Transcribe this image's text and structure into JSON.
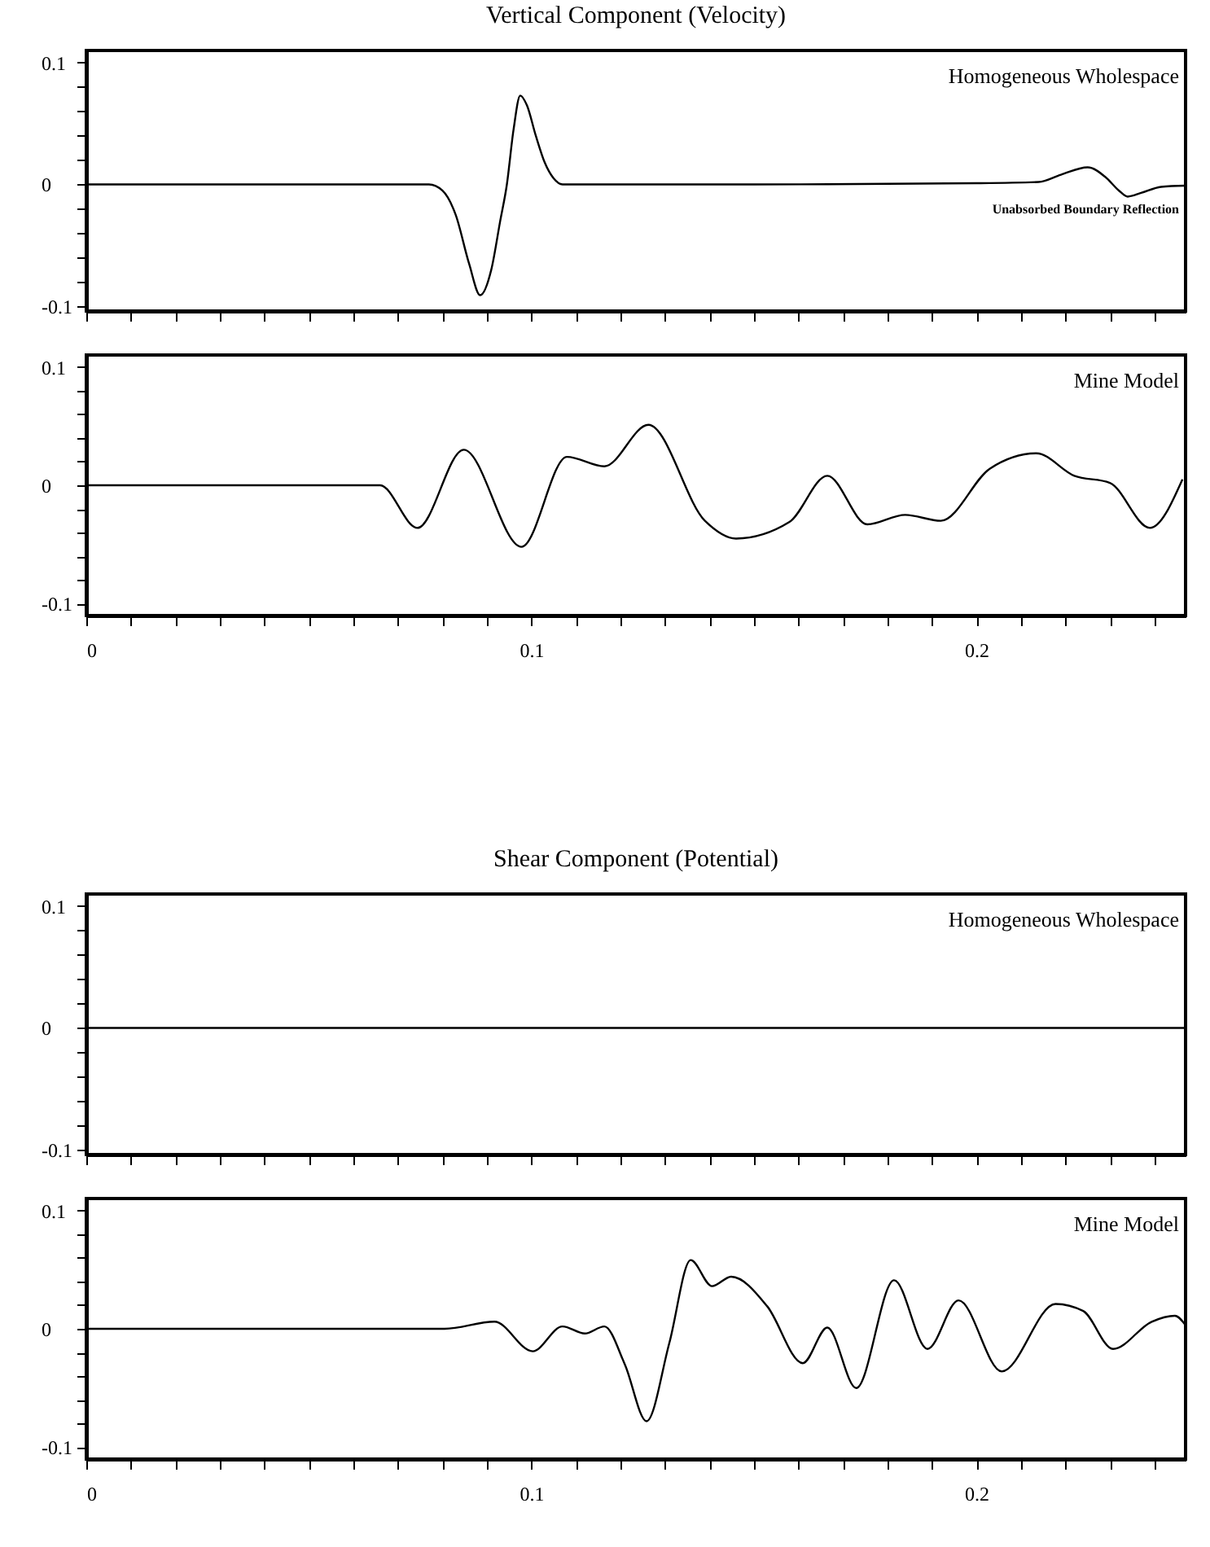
{
  "chart_data": [
    {
      "type": "line",
      "title": "Vertical Component (Velocity)",
      "annotations": [
        "Homogeneous Wholespace",
        "Unabsorbed Boundary Reflection"
      ],
      "x": [
        0,
        0.07,
        0.077,
        0.08,
        0.083,
        0.086,
        0.0885,
        0.091,
        0.093,
        0.0945,
        0.096,
        0.0975,
        0.099,
        0.101,
        0.103,
        0.105,
        0.107,
        0.15,
        0.2,
        0.214,
        0.219,
        0.225,
        0.229,
        0.232,
        0.234,
        0.237,
        0.2415,
        0.247
      ],
      "series": [
        {
          "color": "#000000",
          "values": [
            0,
            0,
            0,
            -0.005,
            -0.025,
            -0.065,
            -0.091,
            -0.07,
            -0.03,
            0,
            0.045,
            0.073,
            0.065,
            0.04,
            0.018,
            0.005,
            0,
            0,
            0.001,
            0.002,
            0.008,
            0.014,
            0.006,
            -0.005,
            -0.01,
            -0.007,
            -0.002,
            -0.001
          ]
        }
      ],
      "xlim": [
        0,
        0.247
      ],
      "ylim": [
        -0.104,
        0.11
      ],
      "tick_labels": "y",
      "xticks": [
        0,
        {
          "value": 0.01,
          "label": null
        },
        {
          "value": 0.02,
          "label": null
        },
        {
          "value": 0.03,
          "label": null
        },
        {
          "value": 0.04,
          "label": null
        },
        {
          "value": 0.05,
          "label": null
        },
        {
          "value": 0.06,
          "label": null
        },
        {
          "value": 0.07,
          "label": null
        },
        {
          "value": 0.08,
          "label": null
        },
        {
          "value": 0.09,
          "label": null
        },
        0.1,
        {
          "value": 0.11,
          "label": null
        },
        {
          "value": 0.12,
          "label": null
        },
        {
          "value": 0.13,
          "label": null
        },
        {
          "value": 0.14,
          "label": null
        },
        {
          "value": 0.15,
          "label": null
        },
        {
          "value": 0.16,
          "label": null
        },
        {
          "value": 0.17,
          "label": null
        },
        {
          "value": 0.18,
          "label": null
        },
        {
          "value": 0.19,
          "label": null
        },
        0.2,
        {
          "value": 0.21,
          "label": null
        },
        {
          "value": 0.22,
          "label": null
        },
        {
          "value": 0.23,
          "label": null
        },
        {
          "value": 0.24,
          "label": null
        }
      ],
      "yticks": [
        -0.1,
        {
          "value": -0.08,
          "label": null
        },
        {
          "value": -0.06,
          "label": null
        },
        {
          "value": -0.04,
          "label": null
        },
        {
          "value": -0.02,
          "label": null
        },
        0,
        {
          "value": 0.02,
          "label": null
        },
        {
          "value": 0.04,
          "label": null
        },
        {
          "value": 0.06,
          "label": null
        },
        {
          "value": 0.08,
          "label": null
        },
        0.1
      ]
    },
    {
      "type": "line",
      "annotations": [
        "Mine Model"
      ],
      "x": [
        0,
        0.066,
        0.0744,
        0.0848,
        0.0978,
        0.108,
        0.1164,
        0.1263,
        0.139,
        0.146,
        0.158,
        0.1665,
        0.1755,
        0.184,
        0.192,
        0.203,
        0.2135,
        0.222,
        0.23,
        0.239,
        0.2463
      ],
      "series": [
        {
          "color": "#000000",
          "values": [
            0,
            0,
            -0.036,
            0.03,
            -0.052,
            0.024,
            0.016,
            0.051,
            -0.03,
            -0.045,
            -0.031,
            0.008,
            -0.033,
            -0.025,
            -0.03,
            0.014,
            0.027,
            0.008,
            0.002,
            -0.036,
            0.005
          ]
        }
      ],
      "xlim": [
        0,
        0.247
      ],
      "ylim": [
        -0.11,
        0.11
      ],
      "xticks": [
        0,
        {
          "value": 0.01,
          "label": null
        },
        {
          "value": 0.02,
          "label": null
        },
        {
          "value": 0.03,
          "label": null
        },
        {
          "value": 0.04,
          "label": null
        },
        {
          "value": 0.05,
          "label": null
        },
        {
          "value": 0.06,
          "label": null
        },
        {
          "value": 0.07,
          "label": null
        },
        {
          "value": 0.08,
          "label": null
        },
        {
          "value": 0.09,
          "label": null
        },
        0.1,
        {
          "value": 0.11,
          "label": null
        },
        {
          "value": 0.12,
          "label": null
        },
        {
          "value": 0.13,
          "label": null
        },
        {
          "value": 0.14,
          "label": null
        },
        {
          "value": 0.15,
          "label": null
        },
        {
          "value": 0.16,
          "label": null
        },
        {
          "value": 0.17,
          "label": null
        },
        {
          "value": 0.18,
          "label": null
        },
        {
          "value": 0.19,
          "label": null
        },
        0.2,
        {
          "value": 0.21,
          "label": null
        },
        {
          "value": 0.22,
          "label": null
        },
        {
          "value": 0.23,
          "label": null
        },
        {
          "value": 0.24,
          "label": null
        }
      ],
      "yticks": [
        -0.1,
        {
          "value": -0.08,
          "label": null
        },
        {
          "value": -0.06,
          "label": null
        },
        {
          "value": -0.04,
          "label": null
        },
        {
          "value": -0.02,
          "label": null
        },
        0,
        {
          "value": 0.02,
          "label": null
        },
        {
          "value": 0.04,
          "label": null
        },
        {
          "value": 0.06,
          "label": null
        },
        {
          "value": 0.08,
          "label": null
        },
        0.1
      ]
    },
    {
      "type": "line",
      "title": "Shear Component (Potential)",
      "annotations": [
        "Homogeneous Wholespace"
      ],
      "x": [
        0,
        0.05,
        0.1,
        0.15,
        0.2,
        0.247
      ],
      "series": [
        {
          "color": "#000000",
          "values": [
            0,
            0,
            0,
            0,
            0,
            0
          ]
        }
      ],
      "xlim": [
        0,
        0.247
      ],
      "ylim": [
        -0.104,
        0.11
      ],
      "tick_labels": "y",
      "xticks": [
        0,
        {
          "value": 0.01,
          "label": null
        },
        {
          "value": 0.02,
          "label": null
        },
        {
          "value": 0.03,
          "label": null
        },
        {
          "value": 0.04,
          "label": null
        },
        {
          "value": 0.05,
          "label": null
        },
        {
          "value": 0.06,
          "label": null
        },
        {
          "value": 0.07,
          "label": null
        },
        {
          "value": 0.08,
          "label": null
        },
        {
          "value": 0.09,
          "label": null
        },
        0.1,
        {
          "value": 0.11,
          "label": null
        },
        {
          "value": 0.12,
          "label": null
        },
        {
          "value": 0.13,
          "label": null
        },
        {
          "value": 0.14,
          "label": null
        },
        {
          "value": 0.15,
          "label": null
        },
        {
          "value": 0.16,
          "label": null
        },
        {
          "value": 0.17,
          "label": null
        },
        {
          "value": 0.18,
          "label": null
        },
        {
          "value": 0.19,
          "label": null
        },
        0.2,
        {
          "value": 0.21,
          "label": null
        },
        {
          "value": 0.22,
          "label": null
        },
        {
          "value": 0.23,
          "label": null
        },
        {
          "value": 0.24,
          "label": null
        }
      ],
      "yticks": [
        -0.1,
        {
          "value": -0.08,
          "label": null
        },
        {
          "value": -0.06,
          "label": null
        },
        {
          "value": -0.04,
          "label": null
        },
        {
          "value": -0.02,
          "label": null
        },
        0,
        {
          "value": 0.02,
          "label": null
        },
        {
          "value": 0.04,
          "label": null
        },
        {
          "value": 0.06,
          "label": null
        },
        {
          "value": 0.08,
          "label": null
        },
        0.1
      ]
    },
    {
      "type": "line",
      "annotations": [
        "Mine Model"
      ],
      "x": [
        0,
        0.0805,
        0.0917,
        0.1003,
        0.107,
        0.112,
        0.1164,
        0.121,
        0.1259,
        0.131,
        0.1358,
        0.1406,
        0.1449,
        0.153,
        0.161,
        0.1665,
        0.173,
        0.1815,
        0.189,
        0.196,
        0.2057,
        0.2178,
        0.224,
        0.2307,
        0.2394,
        0.2446,
        0.247
      ],
      "series": [
        {
          "color": "#000000",
          "values": [
            0,
            0,
            0.006,
            -0.019,
            0.002,
            -0.004,
            0.002,
            -0.03,
            -0.078,
            -0.012,
            0.058,
            0.036,
            0.044,
            0.019,
            -0.029,
            0.001,
            -0.05,
            0.041,
            -0.017,
            0.024,
            -0.036,
            0.021,
            0.015,
            -0.017,
            0.006,
            0.011,
            0.003
          ]
        }
      ],
      "xlim": [
        0,
        0.247
      ],
      "ylim": [
        -0.11,
        0.11
      ],
      "xticks": [
        0,
        {
          "value": 0.01,
          "label": null
        },
        {
          "value": 0.02,
          "label": null
        },
        {
          "value": 0.03,
          "label": null
        },
        {
          "value": 0.04,
          "label": null
        },
        {
          "value": 0.05,
          "label": null
        },
        {
          "value": 0.06,
          "label": null
        },
        {
          "value": 0.07,
          "label": null
        },
        {
          "value": 0.08,
          "label": null
        },
        {
          "value": 0.09,
          "label": null
        },
        0.1,
        {
          "value": 0.11,
          "label": null
        },
        {
          "value": 0.12,
          "label": null
        },
        {
          "value": 0.13,
          "label": null
        },
        {
          "value": 0.14,
          "label": null
        },
        {
          "value": 0.15,
          "label": null
        },
        {
          "value": 0.16,
          "label": null
        },
        {
          "value": 0.17,
          "label": null
        },
        {
          "value": 0.18,
          "label": null
        },
        {
          "value": 0.19,
          "label": null
        },
        0.2,
        {
          "value": 0.21,
          "label": null
        },
        {
          "value": 0.22,
          "label": null
        },
        {
          "value": 0.23,
          "label": null
        },
        {
          "value": 0.24,
          "label": null
        }
      ],
      "yticks": [
        -0.1,
        {
          "value": -0.08,
          "label": null
        },
        {
          "value": -0.06,
          "label": null
        },
        {
          "value": -0.04,
          "label": null
        },
        {
          "value": -0.02,
          "label": null
        },
        0,
        {
          "value": 0.02,
          "label": null
        },
        {
          "value": 0.04,
          "label": null
        },
        {
          "value": 0.06,
          "label": null
        },
        {
          "value": 0.08,
          "label": null
        },
        0.1
      ]
    }
  ]
}
